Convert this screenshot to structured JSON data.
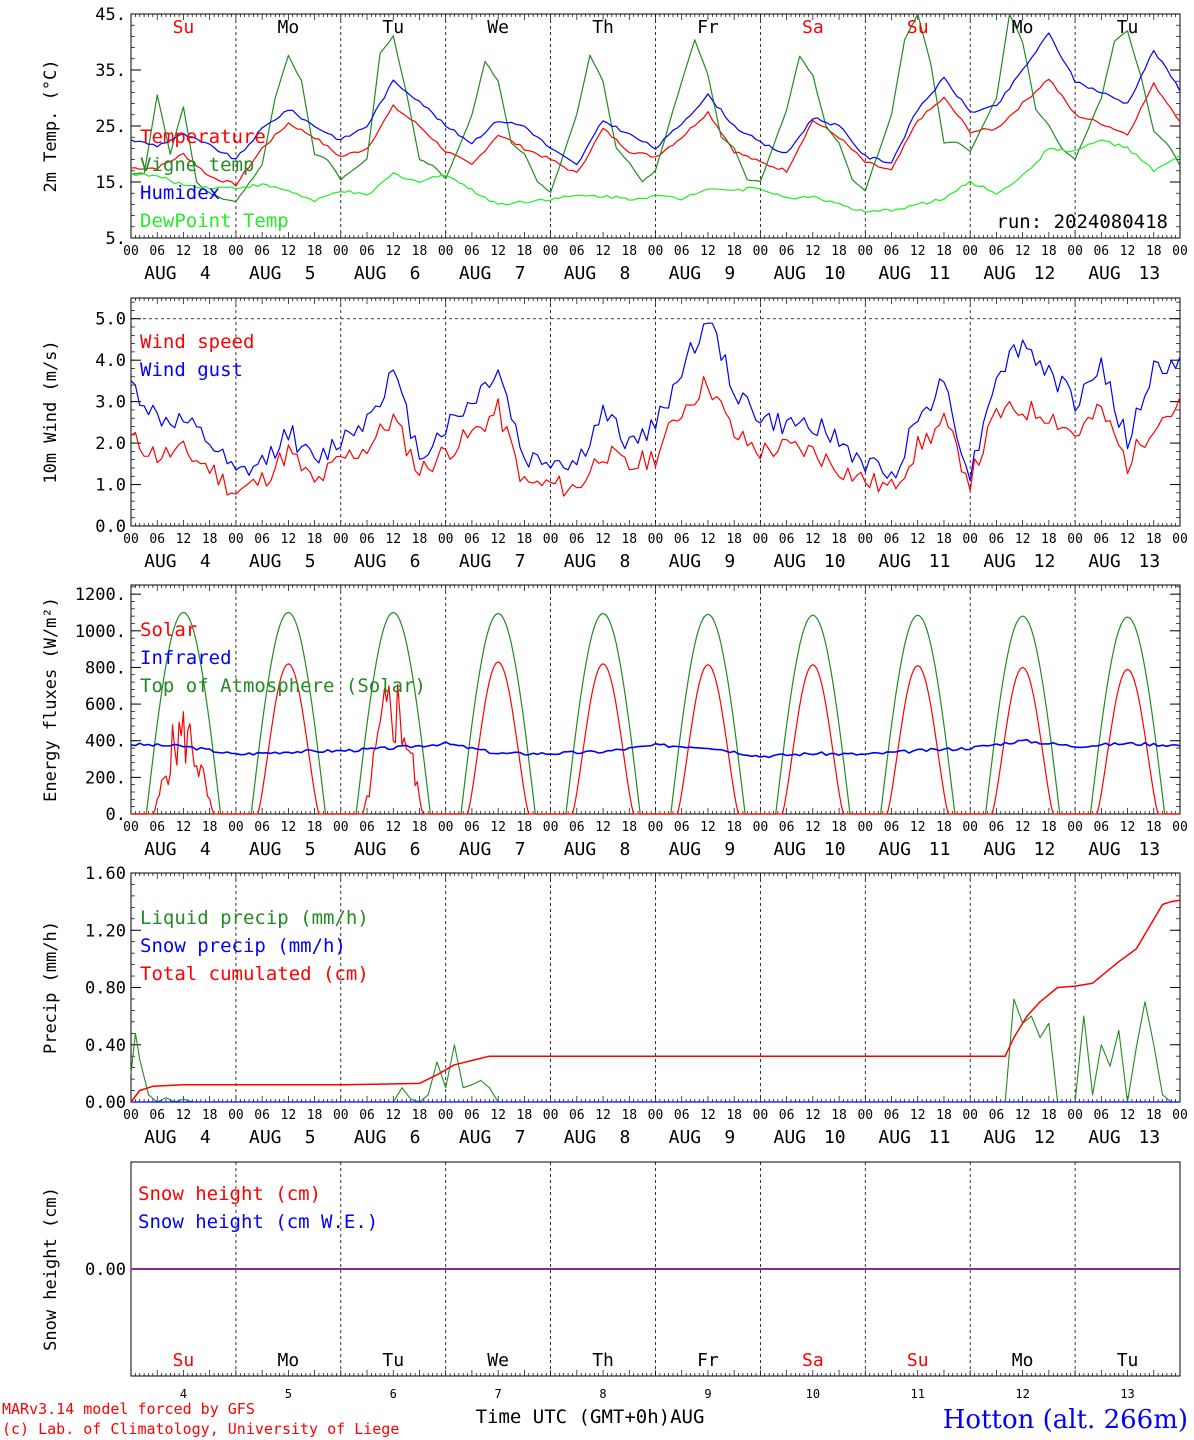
{
  "colors": {
    "red": "#ff0000",
    "green": "#228b22",
    "lightgreen": "#22ee22",
    "blue": "#0000ff",
    "purple": "#8b2b8b",
    "black": "#000000"
  },
  "header": {
    "days": [
      "Su",
      "Mo",
      "Tu",
      "We",
      "Th",
      "Fr",
      "Sa",
      "Su",
      "Mo",
      "Tu"
    ],
    "weekend_days": [
      "Su",
      "Sa"
    ]
  },
  "x_axis": {
    "hour_labels": [
      "00",
      "06",
      "12",
      "18"
    ],
    "end_label": "00",
    "month": "AUG",
    "dates": [
      "4",
      "5",
      "6",
      "7",
      "8",
      "9",
      "10",
      "11",
      "12",
      "13"
    ],
    "footer_title": "Time UTC (GMT+0h)AUG"
  },
  "footer": {
    "credit_1": "MARv3.14 model forced by GFS",
    "credit_2": "(c) Lab. of Climatology, University of Liege",
    "station": "Hotton (alt. 266m)"
  },
  "chart_data": [
    {
      "id": "temp",
      "type": "line",
      "ylabel": "2m Temp. (°C)",
      "ylim": [
        5,
        45
      ],
      "yticks": [
        "45.",
        "35.",
        "25.",
        "15.",
        "5."
      ],
      "ytick_values": [
        45,
        35,
        25,
        15,
        5
      ],
      "run_label": "run: 2024080418",
      "x_unit": "hours since Aug 4 00 UTC",
      "series": [
        {
          "name": "Temperature",
          "color": "red",
          "x": [
            0,
            6,
            12,
            18,
            24,
            30,
            36,
            42,
            48,
            54,
            60,
            66,
            72,
            78,
            84,
            90,
            96,
            102,
            108,
            114,
            120,
            126,
            132,
            138,
            144,
            150,
            156,
            162,
            168,
            174,
            180,
            186,
            192,
            198,
            204,
            210,
            216,
            222,
            228,
            234,
            240
          ],
          "y": [
            17.5,
            17.5,
            20,
            16,
            14.5,
            21,
            25.5,
            23,
            19.5,
            21,
            28.5,
            25,
            20.5,
            18,
            23.5,
            21,
            19,
            16.5,
            24.5,
            20.5,
            19.5,
            23,
            27.5,
            20.5,
            18.5,
            17,
            26,
            23,
            18.5,
            17,
            26,
            30,
            24,
            24.5,
            29,
            33.5,
            27,
            25.5,
            23.5,
            32.5,
            26
          ]
        },
        {
          "name": "Vigne temp",
          "color": "green",
          "x": [
            0,
            3,
            6,
            9,
            12,
            15,
            18,
            21,
            24,
            30,
            33,
            36,
            39,
            42,
            45,
            48,
            54,
            57,
            60,
            63,
            66,
            69,
            72,
            78,
            81,
            84,
            87,
            90,
            93,
            96,
            102,
            105,
            108,
            111,
            114,
            117,
            120,
            126,
            129,
            132,
            135,
            138,
            141,
            144,
            150,
            153,
            156,
            159,
            162,
            165,
            168,
            174,
            177,
            180,
            183,
            186,
            189,
            192,
            198,
            201,
            204,
            207,
            210,
            213,
            216,
            222,
            225,
            228,
            231,
            234,
            237,
            240
          ],
          "y": [
            16.5,
            16.5,
            30.5,
            20,
            28.5,
            15,
            13,
            12,
            11.5,
            18,
            30,
            37.5,
            33,
            20,
            19,
            15.5,
            19,
            38,
            41,
            31,
            19,
            18,
            15.5,
            27,
            36.5,
            33,
            22,
            20,
            15,
            13,
            27,
            37.5,
            33,
            21,
            18.5,
            15,
            17,
            33,
            40.5,
            34,
            23,
            21,
            15.5,
            15,
            28,
            37.5,
            34,
            25,
            22,
            15.5,
            13.5,
            27,
            40.5,
            45,
            36,
            22,
            22,
            20.5,
            30,
            45,
            40,
            28,
            25,
            21,
            19,
            30,
            40,
            42,
            34,
            24,
            22,
            18
          ]
        },
        {
          "name": "Humidex",
          "color": "blue",
          "x": [
            0,
            6,
            12,
            18,
            24,
            30,
            36,
            42,
            48,
            54,
            60,
            66,
            72,
            78,
            84,
            90,
            96,
            102,
            108,
            114,
            120,
            126,
            132,
            138,
            144,
            150,
            156,
            162,
            168,
            174,
            180,
            186,
            192,
            198,
            204,
            210,
            216,
            222,
            228,
            234,
            240
          ],
          "y": [
            22.5,
            21.5,
            23.5,
            21.5,
            19,
            24.5,
            28,
            25,
            22.5,
            25,
            33,
            29.5,
            25,
            22,
            26,
            25,
            21,
            18,
            26,
            23.5,
            21,
            25.5,
            30.5,
            25,
            22,
            20,
            26.5,
            25,
            19.5,
            18.5,
            28,
            33.5,
            27.5,
            28.5,
            35,
            41.5,
            33,
            31,
            29,
            38.5,
            31.5
          ]
        },
        {
          "name": "DewPoint Temp",
          "color": "lightgreen",
          "x": [
            0,
            6,
            12,
            18,
            24,
            30,
            36,
            42,
            48,
            54,
            60,
            66,
            72,
            78,
            84,
            90,
            96,
            102,
            108,
            114,
            120,
            126,
            132,
            138,
            144,
            150,
            156,
            162,
            168,
            174,
            180,
            186,
            192,
            198,
            204,
            210,
            216,
            222,
            228,
            234,
            240
          ],
          "y": [
            16.5,
            16,
            14.5,
            14,
            14,
            14.5,
            13.5,
            11.5,
            13.5,
            12.5,
            16.5,
            15,
            16.5,
            13.5,
            11,
            11.5,
            12,
            12.5,
            12.5,
            12,
            12.5,
            12,
            14,
            13.5,
            14,
            12,
            12.5,
            11,
            9.5,
            10,
            11,
            12,
            15,
            13,
            16,
            21,
            20.5,
            22.5,
            21,
            17,
            19.5
          ]
        }
      ]
    },
    {
      "id": "wind",
      "type": "line",
      "ylabel": "10m Wind (m/s)",
      "ylim": [
        0,
        5.5
      ],
      "yticks": [
        "5.0",
        "4.0",
        "3.0",
        "2.0",
        "1.0",
        "0.0"
      ],
      "ytick_values": [
        5,
        4,
        3,
        2,
        1,
        0
      ],
      "x_unit": "hours since Aug 4 00 UTC",
      "series": [
        {
          "name": "Wind speed",
          "color": "red",
          "x": [
            0,
            6,
            12,
            18,
            24,
            30,
            36,
            42,
            48,
            54,
            60,
            66,
            72,
            78,
            84,
            90,
            96,
            102,
            108,
            114,
            120,
            126,
            132,
            138,
            144,
            150,
            156,
            162,
            168,
            174,
            180,
            186,
            192,
            198,
            204,
            210,
            216,
            222,
            228,
            234,
            240
          ],
          "y": [
            2.1,
            1.7,
            1.8,
            1.4,
            0.8,
            1.1,
            1.8,
            1.0,
            1.6,
            1.9,
            2.6,
            1.3,
            1.8,
            2.2,
            2.8,
            1.0,
            1.0,
            0.9,
            1.8,
            1.4,
            1.7,
            2.8,
            3.5,
            2.2,
            1.8,
            1.9,
            1.8,
            1.4,
            1.1,
            0.9,
            1.9,
            2.5,
            1.1,
            2.7,
            2.8,
            2.7,
            2.2,
            2.8,
            1.5,
            2.5,
            2.9
          ]
        },
        {
          "name": "Wind gust",
          "color": "blue",
          "x": [
            0,
            6,
            12,
            18,
            24,
            30,
            36,
            42,
            48,
            54,
            60,
            66,
            72,
            78,
            84,
            90,
            96,
            102,
            108,
            114,
            120,
            126,
            132,
            138,
            144,
            150,
            156,
            162,
            168,
            174,
            180,
            186,
            192,
            198,
            204,
            210,
            216,
            222,
            228,
            234,
            240
          ],
          "y": [
            3.4,
            2.6,
            2.5,
            2.0,
            1.2,
            1.5,
            2.3,
            1.5,
            2.1,
            2.6,
            3.7,
            1.7,
            2.4,
            3.0,
            3.8,
            1.6,
            1.6,
            1.5,
            2.7,
            2.0,
            2.4,
            3.8,
            5.0,
            3.3,
            2.6,
            2.4,
            2.5,
            2.0,
            1.5,
            1.2,
            2.6,
            3.5,
            1.2,
            3.7,
            4.4,
            3.7,
            3.0,
            3.9,
            2.0,
            3.8,
            3.9
          ]
        }
      ]
    },
    {
      "id": "energy",
      "type": "line",
      "ylabel": "Energy fluxes (W/m²)",
      "ylim": [
        0,
        1250
      ],
      "yticks": [
        "1200.",
        "1000.",
        "800.",
        "600.",
        "400.",
        "200.",
        "0."
      ],
      "ytick_values": [
        1200,
        1000,
        800,
        600,
        400,
        200,
        0
      ],
      "x_unit": "hours since Aug 4 00 UTC",
      "series": [
        {
          "name": "Solar",
          "color": "red",
          "peaks": [
            610,
            820,
            820,
            830,
            820,
            815,
            815,
            810,
            800,
            790
          ]
        },
        {
          "name": "Infrared",
          "color": "blue",
          "x": [
            0,
            12,
            24,
            36,
            48,
            60,
            72,
            84,
            96,
            108,
            120,
            132,
            144,
            156,
            168,
            180,
            192,
            204,
            216,
            228,
            240
          ],
          "y": [
            380,
            370,
            325,
            340,
            345,
            360,
            385,
            330,
            330,
            340,
            375,
            365,
            315,
            330,
            325,
            345,
            360,
            400,
            370,
            385,
            375
          ]
        },
        {
          "name": "Top of Atmosphere (Solar)",
          "color": "green",
          "peaks": [
            1100,
            1100,
            1100,
            1095,
            1095,
            1090,
            1085,
            1085,
            1080,
            1075
          ]
        }
      ]
    },
    {
      "id": "precip",
      "type": "line",
      "ylabel": "Precip (mm/h)",
      "ylim": [
        0,
        1.6
      ],
      "yticks": [
        "1.60",
        "1.20",
        "0.80",
        "0.40",
        "0.00"
      ],
      "ytick_values": [
        1.6,
        1.2,
        0.8,
        0.4,
        0
      ],
      "x_unit": "hours since Aug 4 00 UTC",
      "series": [
        {
          "name": "Liquid precip (mm/h)",
          "color": "green",
          "x": [
            0,
            1,
            2,
            4,
            6,
            8,
            10,
            12,
            14,
            60,
            62,
            64,
            66,
            68,
            70,
            72,
            74,
            76,
            78,
            80,
            82,
            84,
            200,
            202,
            204,
            206,
            208,
            210,
            212,
            214,
            216,
            218,
            220,
            222,
            224,
            226,
            228,
            230,
            232,
            234,
            236,
            238,
            240
          ],
          "y": [
            0.2,
            0.48,
            0.3,
            0.05,
            0.0,
            0.03,
            0.0,
            0.02,
            0.0,
            0.0,
            0.1,
            0.02,
            0.0,
            0.05,
            0.28,
            0.1,
            0.4,
            0.1,
            0.12,
            0.15,
            0.1,
            0.0,
            0.0,
            0.72,
            0.55,
            0.6,
            0.45,
            0.55,
            0.0,
            0.0,
            0.0,
            0.6,
            0.05,
            0.4,
            0.25,
            0.5,
            0.0,
            0.38,
            0.7,
            0.4,
            0.05,
            0.0,
            0.0
          ]
        },
        {
          "name": "Snow precip (mm/h)",
          "color": "blue",
          "x": [
            0,
            240
          ],
          "y": [
            0,
            0
          ]
        },
        {
          "name": "Total cumulated (cm)",
          "color": "red",
          "x": [
            0,
            2,
            5,
            12,
            24,
            48,
            66,
            70,
            74,
            78,
            82,
            96,
            120,
            168,
            200,
            202,
            205,
            208,
            212,
            216,
            220,
            226,
            230,
            236,
            238,
            240
          ],
          "y": [
            0,
            0.08,
            0.11,
            0.12,
            0.12,
            0.12,
            0.13,
            0.19,
            0.26,
            0.29,
            0.32,
            0.32,
            0.32,
            0.32,
            0.32,
            0.45,
            0.6,
            0.7,
            0.8,
            0.81,
            0.83,
            0.98,
            1.07,
            1.38,
            1.4,
            1.41
          ]
        }
      ]
    },
    {
      "id": "snow",
      "type": "line",
      "ylabel": "Snow height (cm)",
      "ylim": [
        -1,
        1
      ],
      "yticks": [
        "0.00"
      ],
      "ytick_values": [
        0
      ],
      "x_unit": "hours since Aug 4 00 UTC",
      "series": [
        {
          "name": "Snow height (cm)",
          "color": "red",
          "x": [
            0,
            240
          ],
          "y": [
            0,
            0
          ]
        },
        {
          "name": "Snow height (cm W.E.)",
          "color": "blue",
          "x": [
            0,
            240
          ],
          "y": [
            0,
            0
          ]
        }
      ]
    }
  ]
}
